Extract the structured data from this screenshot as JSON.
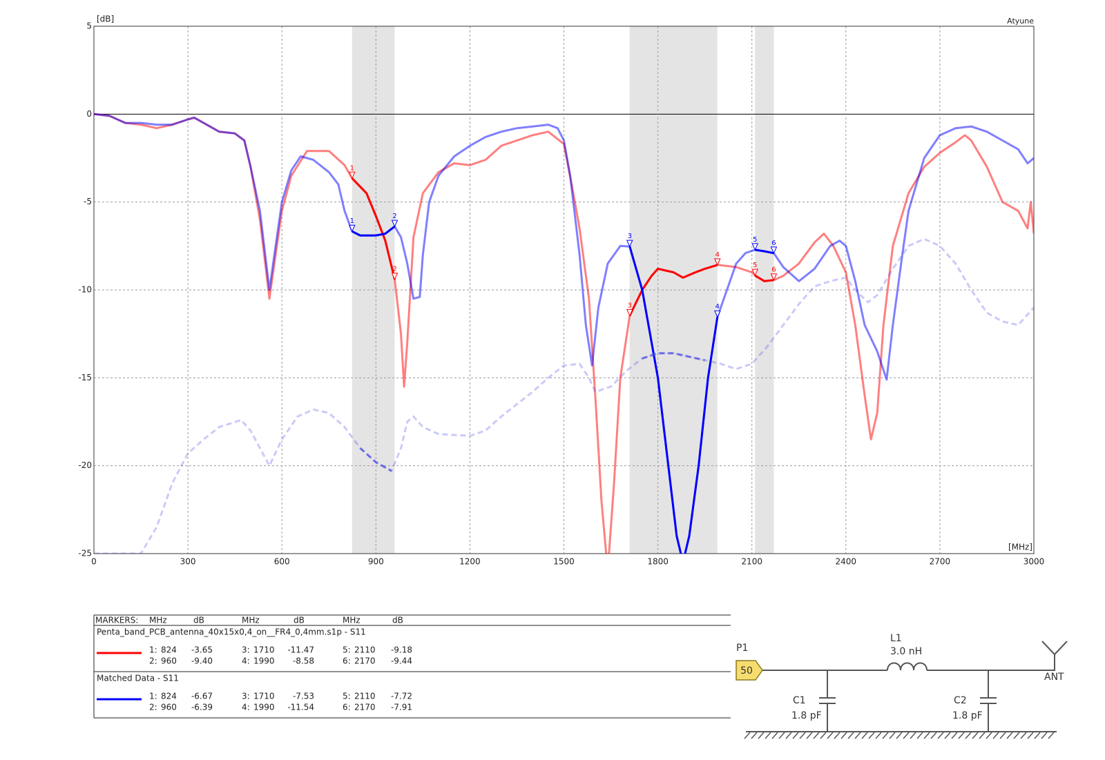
{
  "chart_data": {
    "type": "line",
    "y_axis_label": "[dB]",
    "x_axis_label": "[MHz]",
    "corner_label": "Atyune",
    "xlim": [
      0,
      3000
    ],
    "ylim": [
      -25,
      5
    ],
    "xticks": [
      0,
      300,
      600,
      900,
      1200,
      1500,
      1800,
      2100,
      2400,
      2700,
      3000
    ],
    "yticks": [
      5,
      0,
      -5,
      -10,
      -15,
      -20,
      -25
    ],
    "grid": true,
    "bands": [
      [
        824,
        960
      ],
      [
        1710,
        1990
      ],
      [
        2110,
        2170
      ]
    ],
    "series": [
      {
        "name": "Penta_band_PCB_antenna_40x15x0,4_on__FR4_0,4mm.s1p - S11",
        "color": "#ff0000",
        "x": [
          0,
          50,
          100,
          150,
          200,
          250,
          300,
          320,
          350,
          400,
          450,
          480,
          500,
          530,
          560,
          580,
          600,
          630,
          680,
          750,
          800,
          824,
          870,
          900,
          930,
          960,
          980,
          990,
          1000,
          1020,
          1050,
          1100,
          1150,
          1200,
          1250,
          1300,
          1350,
          1400,
          1450,
          1500,
          1530,
          1550,
          1580,
          1600,
          1620,
          1640,
          1660,
          1680,
          1710,
          1750,
          1780,
          1800,
          1850,
          1880,
          1920,
          1950,
          1990,
          2050,
          2100,
          2110,
          2140,
          2170,
          2200,
          2250,
          2300,
          2330,
          2360,
          2400,
          2430,
          2460,
          2480,
          2500,
          2520,
          2550,
          2600,
          2650,
          2700,
          2750,
          2780,
          2800,
          2850,
          2900,
          2950,
          2980,
          2990,
          3000
        ],
        "values": [
          0,
          -0.1,
          -0.5,
          -0.6,
          -0.8,
          -0.6,
          -0.3,
          -0.2,
          -0.5,
          -1.0,
          -1.1,
          -1.5,
          -3,
          -6,
          -10.5,
          -8,
          -5.5,
          -3.5,
          -2.1,
          -2.1,
          -2.9,
          -3.65,
          -4.5,
          -5.8,
          -7.2,
          -9.4,
          -12.5,
          -15.5,
          -13,
          -7,
          -4.5,
          -3.3,
          -2.8,
          -2.9,
          -2.6,
          -1.8,
          -1.5,
          -1.2,
          -1.0,
          -1.7,
          -4.5,
          -6.5,
          -10.5,
          -16,
          -22,
          -26,
          -21,
          -15,
          -11.47,
          -10,
          -9.2,
          -8.8,
          -9.0,
          -9.3,
          -9.0,
          -8.8,
          -8.58,
          -8.7,
          -9.0,
          -9.18,
          -9.5,
          -9.44,
          -9.2,
          -8.5,
          -7.3,
          -6.8,
          -7.5,
          -9,
          -12,
          -16,
          -18.5,
          -17,
          -12,
          -7.5,
          -4.5,
          -3.0,
          -2.2,
          -1.6,
          -1.2,
          -1.5,
          -3,
          -5,
          -5.5,
          -6.5,
          -5,
          -6.8
        ],
        "markers": [
          {
            "label": "1",
            "table_label": "1:",
            "x": 824,
            "y": -3.65
          },
          {
            "label": "2",
            "table_label": "2:",
            "x": 960,
            "y": -9.4,
            "y_label": "-9.40"
          },
          {
            "label": "3",
            "table_label": "3:",
            "x": 1710,
            "y": -11.47
          },
          {
            "label": "4",
            "table_label": "4:",
            "x": 1990,
            "y": -8.58
          },
          {
            "label": "5",
            "table_label": "5:",
            "x": 2110,
            "y": -9.18
          },
          {
            "label": "6",
            "table_label": "6:",
            "x": 2170,
            "y": -9.44
          }
        ]
      },
      {
        "name": "Matched Data - S11",
        "color": "#0000ff",
        "x": [
          0,
          50,
          100,
          150,
          200,
          250,
          300,
          320,
          350,
          400,
          450,
          480,
          500,
          530,
          560,
          580,
          600,
          630,
          660,
          700,
          750,
          780,
          800,
          824,
          850,
          900,
          930,
          960,
          980,
          1000,
          1020,
          1040,
          1050,
          1070,
          1100,
          1150,
          1200,
          1250,
          1300,
          1350,
          1400,
          1450,
          1480,
          1500,
          1520,
          1550,
          1570,
          1590,
          1610,
          1640,
          1680,
          1710,
          1750,
          1800,
          1830,
          1860,
          1880,
          1900,
          1930,
          1960,
          1990,
          2050,
          2080,
          2110,
          2140,
          2170,
          2200,
          2250,
          2300,
          2350,
          2380,
          2400,
          2430,
          2460,
          2500,
          2530,
          2550,
          2580,
          2600,
          2650,
          2700,
          2750,
          2800,
          2850,
          2900,
          2950,
          2980,
          3000
        ],
        "values": [
          0,
          -0.1,
          -0.5,
          -0.5,
          -0.6,
          -0.6,
          -0.3,
          -0.2,
          -0.5,
          -1.0,
          -1.1,
          -1.5,
          -3,
          -5.5,
          -10,
          -7.5,
          -5,
          -3.2,
          -2.4,
          -2.6,
          -3.3,
          -4,
          -5.5,
          -6.67,
          -6.9,
          -6.9,
          -6.8,
          -6.39,
          -7,
          -8.5,
          -10.5,
          -10.4,
          -8,
          -5,
          -3.5,
          -2.4,
          -1.8,
          -1.3,
          -1.0,
          -0.8,
          -0.7,
          -0.6,
          -0.8,
          -1.5,
          -3.5,
          -8,
          -12,
          -14.3,
          -11,
          -8.5,
          -7.5,
          -7.53,
          -10,
          -15,
          -19.5,
          -24,
          -25.5,
          -24,
          -20,
          -15,
          -11.54,
          -8.5,
          -7.9,
          -7.72,
          -7.8,
          -7.91,
          -8.7,
          -9.5,
          -8.8,
          -7.5,
          -7.2,
          -7.5,
          -9.5,
          -12,
          -13.5,
          -15.1,
          -12,
          -8,
          -5.5,
          -2.5,
          -1.2,
          -0.8,
          -0.7,
          -1,
          -1.5,
          -2,
          -2.8,
          -2.5
        ],
        "markers": [
          {
            "label": "1",
            "table_label": "1:",
            "x": 824,
            "y": -6.67
          },
          {
            "label": "2",
            "table_label": "2:",
            "x": 960,
            "y": -6.39
          },
          {
            "label": "3",
            "table_label": "3:",
            "x": 1710,
            "y": -7.53
          },
          {
            "label": "4",
            "table_label": "4:",
            "x": 1990,
            "y": -11.54
          },
          {
            "label": "5",
            "table_label": "5:",
            "x": 2110,
            "y": -7.72
          },
          {
            "label": "6",
            "table_label": "6:",
            "x": 2170,
            "y": -7.91
          }
        ]
      },
      {
        "color": "#5050e8",
        "dashed": true,
        "x": [
          0,
          150,
          200,
          250,
          300,
          350,
          400,
          470,
          500,
          560,
          600,
          650,
          700,
          750,
          800,
          850,
          900,
          950,
          980,
          1000,
          1020,
          1050,
          1100,
          1200,
          1250,
          1300,
          1350,
          1400,
          1450,
          1500,
          1550,
          1580,
          1600,
          1650,
          1700,
          1750,
          1800,
          1850,
          1900,
          1950,
          2000,
          2050,
          2100,
          2150,
          2200,
          2250,
          2300,
          2350,
          2400,
          2430,
          2470,
          2500,
          2550,
          2600,
          2650,
          2700,
          2750,
          2800,
          2850,
          2900,
          2950,
          3000
        ],
        "values": [
          -25,
          -25,
          -23.5,
          -21,
          -19.3,
          -18.5,
          -17.8,
          -17.4,
          -18,
          -20,
          -18.5,
          -17.2,
          -16.8,
          -17,
          -17.8,
          -19,
          -19.8,
          -20.3,
          -19,
          -17.5,
          -17.2,
          -17.8,
          -18.2,
          -18.3,
          -18,
          -17.2,
          -16.5,
          -15.8,
          -15,
          -14.3,
          -14.2,
          -15,
          -15.8,
          -15.5,
          -14.6,
          -13.9,
          -13.6,
          -13.6,
          -13.8,
          -14,
          -14.2,
          -14.5,
          -14.2,
          -13.2,
          -12,
          -10.8,
          -9.8,
          -9.5,
          -9.3,
          -10,
          -10.7,
          -10.3,
          -8.8,
          -7.5,
          -7.1,
          -7.5,
          -8.5,
          -10,
          -11.3,
          -11.8,
          -12,
          -11
        ]
      }
    ]
  },
  "marker_table": {
    "header": [
      "MARKERS:",
      "MHz",
      "dB",
      "MHz",
      "dB",
      "MHz",
      "dB"
    ]
  },
  "schematic": {
    "port_label": "P1",
    "port_value": "50",
    "inductor_label": "L1",
    "inductor_value": "3.0 nH",
    "c1_label": "C1",
    "c1_value": "1.8 pF",
    "c2_label": "C2",
    "c2_value": "1.8 pF",
    "antenna_label": "ANT"
  }
}
